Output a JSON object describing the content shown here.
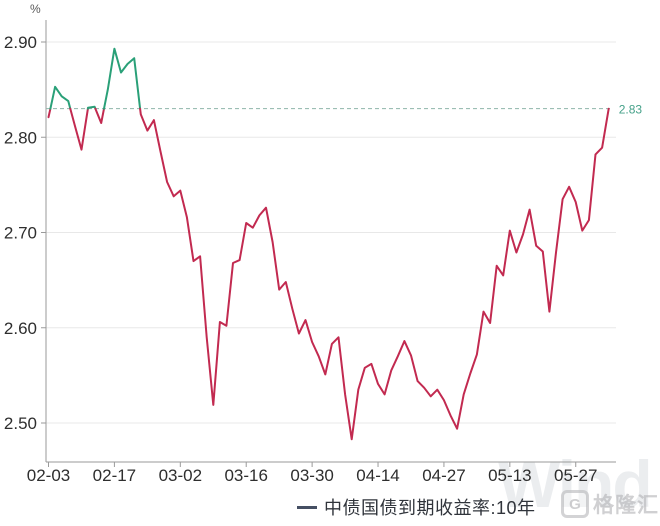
{
  "chart_data": {
    "type": "line",
    "title": "",
    "xlabel": "",
    "ylabel": "%",
    "ylim": [
      2.5,
      2.9
    ],
    "grid": "horizontal",
    "legend_position": "bottom",
    "x_tick_labels": [
      "02-03",
      "02-17",
      "03-02",
      "03-16",
      "03-30",
      "04-14",
      "04-27",
      "05-13",
      "05-27"
    ],
    "x_tick_indices": [
      0,
      10,
      20,
      30,
      40,
      50,
      60,
      70,
      80
    ],
    "y_tick_labels": [
      "2.90",
      "2.80",
      "2.70",
      "2.60",
      "2.50"
    ],
    "y_tick_values": [
      2.9,
      2.8,
      2.7,
      2.6,
      2.5
    ],
    "reference_line": {
      "value": 2.83,
      "label": "2.83"
    },
    "series": [
      {
        "name": "中债国债到期收益率:10年",
        "values": [
          2.821,
          2.853,
          2.843,
          2.838,
          2.812,
          2.787,
          2.831,
          2.832,
          2.815,
          2.85,
          2.893,
          2.868,
          2.877,
          2.883,
          2.824,
          2.807,
          2.818,
          2.785,
          2.753,
          2.738,
          2.744,
          2.716,
          2.67,
          2.675,
          2.59,
          2.519,
          2.606,
          2.602,
          2.668,
          2.671,
          2.71,
          2.705,
          2.718,
          2.726,
          2.69,
          2.64,
          2.648,
          2.62,
          2.594,
          2.608,
          2.585,
          2.57,
          2.551,
          2.583,
          2.59,
          2.53,
          2.483,
          2.535,
          2.558,
          2.562,
          2.541,
          2.53,
          2.555,
          2.57,
          2.586,
          2.571,
          2.544,
          2.537,
          2.528,
          2.535,
          2.524,
          2.508,
          2.494,
          2.53,
          2.552,
          2.572,
          2.617,
          2.605,
          2.665,
          2.655,
          2.702,
          2.679,
          2.698,
          2.724,
          2.686,
          2.68,
          2.617,
          2.679,
          2.735,
          2.748,
          2.732,
          2.702,
          2.713,
          2.782,
          2.789,
          2.83
        ]
      }
    ]
  },
  "colors": {
    "line_up": "#2aa078",
    "line_down": "#c22a50",
    "threshold_line": "#8fb5aa",
    "last_value_label": "#45a189",
    "grid": "#e8e8e8",
    "axis": "#9a9a9a",
    "tick_text": "#2e2e2e",
    "legend_marker": "#454f63"
  },
  "legend": {
    "label": "中债国债到期收益率:10年"
  },
  "unit_label": "%",
  "last_value_label": "2.83",
  "watermark": {
    "wind": "Wind",
    "glonghui": "格隆汇",
    "glonghui_icon": "G"
  }
}
